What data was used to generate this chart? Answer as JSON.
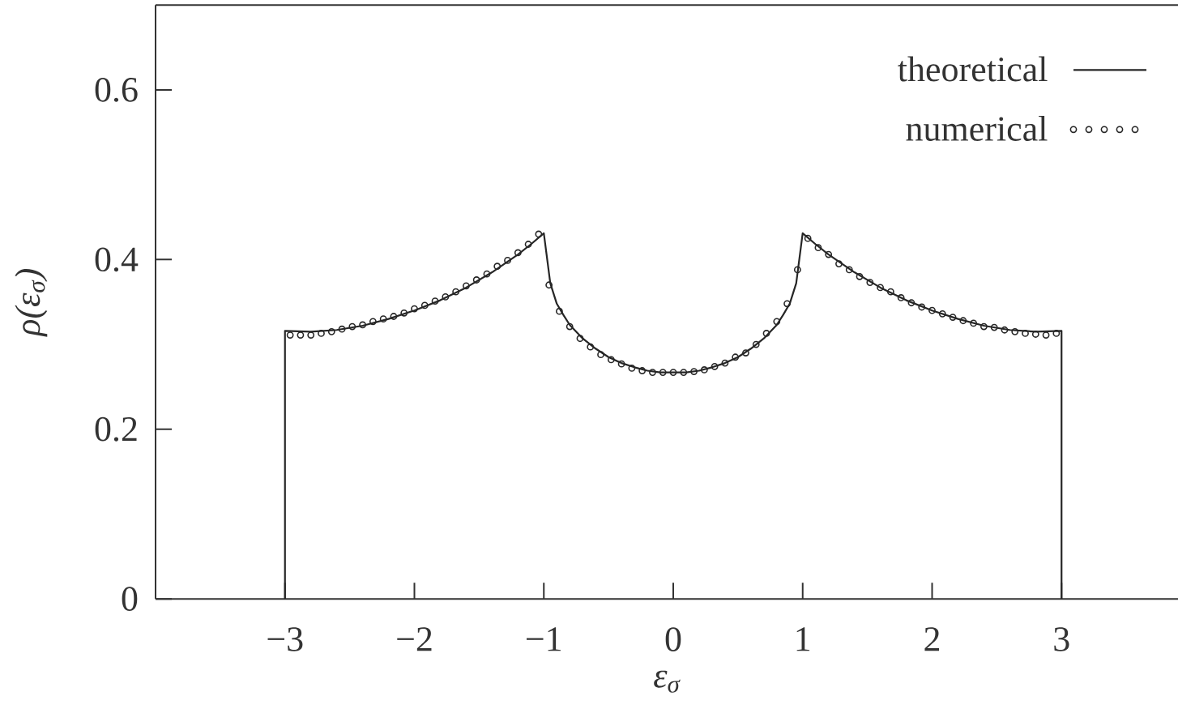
{
  "chart_data": {
    "type": "line",
    "xlabel": "ε$_{σ}$",
    "ylabel": "ρ(ε$_{σ}$)",
    "xlim": [
      -4,
      3.9
    ],
    "ylim": [
      0,
      0.7
    ],
    "xticks": [
      {
        "value": -3,
        "label": "−3"
      },
      {
        "value": -2,
        "label": "−2"
      },
      {
        "value": -1,
        "label": "−1"
      },
      0,
      1,
      2,
      3
    ],
    "yticks": [
      0,
      0.2,
      0.4,
      0.6
    ],
    "legend": "top right",
    "series": [
      {
        "name": "theoretical",
        "color": "#262626",
        "line_style": "solid",
        "x": [
          -3,
          -3,
          -2.8,
          -2.6,
          -2.4,
          -2.2,
          -2,
          -1.8,
          -1.6,
          -1.4,
          -1.2,
          -1.1,
          -1,
          -0.95,
          -0.9,
          -0.85,
          -0.8,
          -0.7,
          -0.6,
          -0.5,
          -0.4,
          -0.3,
          -0.2,
          -0.1,
          0,
          0.1,
          0.2,
          0.3,
          0.4,
          0.5,
          0.6,
          0.7,
          0.8,
          0.85,
          0.9,
          0.95,
          1,
          1.1,
          1.2,
          1.4,
          1.6,
          1.8,
          2,
          2.2,
          2.4,
          2.6,
          2.8,
          3,
          3
        ],
        "values": [
          0,
          0.316,
          0.315,
          0.317,
          0.322,
          0.33,
          0.34,
          0.352,
          0.367,
          0.385,
          0.406,
          0.418,
          0.431,
          0.372,
          0.348,
          0.335,
          0.323,
          0.307,
          0.295,
          0.285,
          0.278,
          0.273,
          0.269,
          0.267,
          0.267,
          0.267,
          0.269,
          0.273,
          0.278,
          0.285,
          0.295,
          0.307,
          0.323,
          0.335,
          0.348,
          0.372,
          0.431,
          0.418,
          0.406,
          0.385,
          0.367,
          0.352,
          0.34,
          0.33,
          0.322,
          0.317,
          0.315,
          0.316,
          0
        ]
      },
      {
        "name": "numerical",
        "type": "scatter",
        "color": "#262626",
        "marker": "circle",
        "x": [
          -2.96,
          -2.88,
          -2.8,
          -2.72,
          -2.64,
          -2.56,
          -2.48,
          -2.4,
          -2.32,
          -2.24,
          -2.16,
          -2.08,
          -2,
          -1.92,
          -1.84,
          -1.76,
          -1.68,
          -1.6,
          -1.52,
          -1.44,
          -1.36,
          -1.28,
          -1.2,
          -1.12,
          -1.04,
          -0.96,
          -0.88,
          -0.8,
          -0.72,
          -0.64,
          -0.56,
          -0.48,
          -0.4,
          -0.32,
          -0.24,
          -0.16,
          -0.08,
          0,
          0.08,
          0.16,
          0.24,
          0.32,
          0.4,
          0.48,
          0.56,
          0.64,
          0.72,
          0.8,
          0.88,
          0.96,
          1.04,
          1.12,
          1.2,
          1.28,
          1.36,
          1.44,
          1.52,
          1.6,
          1.68,
          1.76,
          1.84,
          1.92,
          2,
          2.08,
          2.16,
          2.24,
          2.32,
          2.4,
          2.48,
          2.56,
          2.64,
          2.72,
          2.8,
          2.88,
          2.96
        ],
        "values": [
          0.311,
          0.311,
          0.311,
          0.313,
          0.315,
          0.318,
          0.321,
          0.323,
          0.327,
          0.33,
          0.333,
          0.337,
          0.342,
          0.346,
          0.351,
          0.356,
          0.362,
          0.369,
          0.376,
          0.383,
          0.392,
          0.399,
          0.408,
          0.418,
          0.43,
          0.37,
          0.339,
          0.321,
          0.307,
          0.297,
          0.288,
          0.282,
          0.277,
          0.272,
          0.269,
          0.267,
          0.267,
          0.267,
          0.267,
          0.268,
          0.27,
          0.274,
          0.278,
          0.285,
          0.29,
          0.3,
          0.313,
          0.327,
          0.348,
          0.388,
          0.425,
          0.414,
          0.406,
          0.395,
          0.388,
          0.38,
          0.373,
          0.367,
          0.362,
          0.355,
          0.349,
          0.344,
          0.34,
          0.336,
          0.332,
          0.328,
          0.325,
          0.321,
          0.32,
          0.317,
          0.315,
          0.313,
          0.312,
          0.311,
          0.313
        ]
      }
    ]
  }
}
